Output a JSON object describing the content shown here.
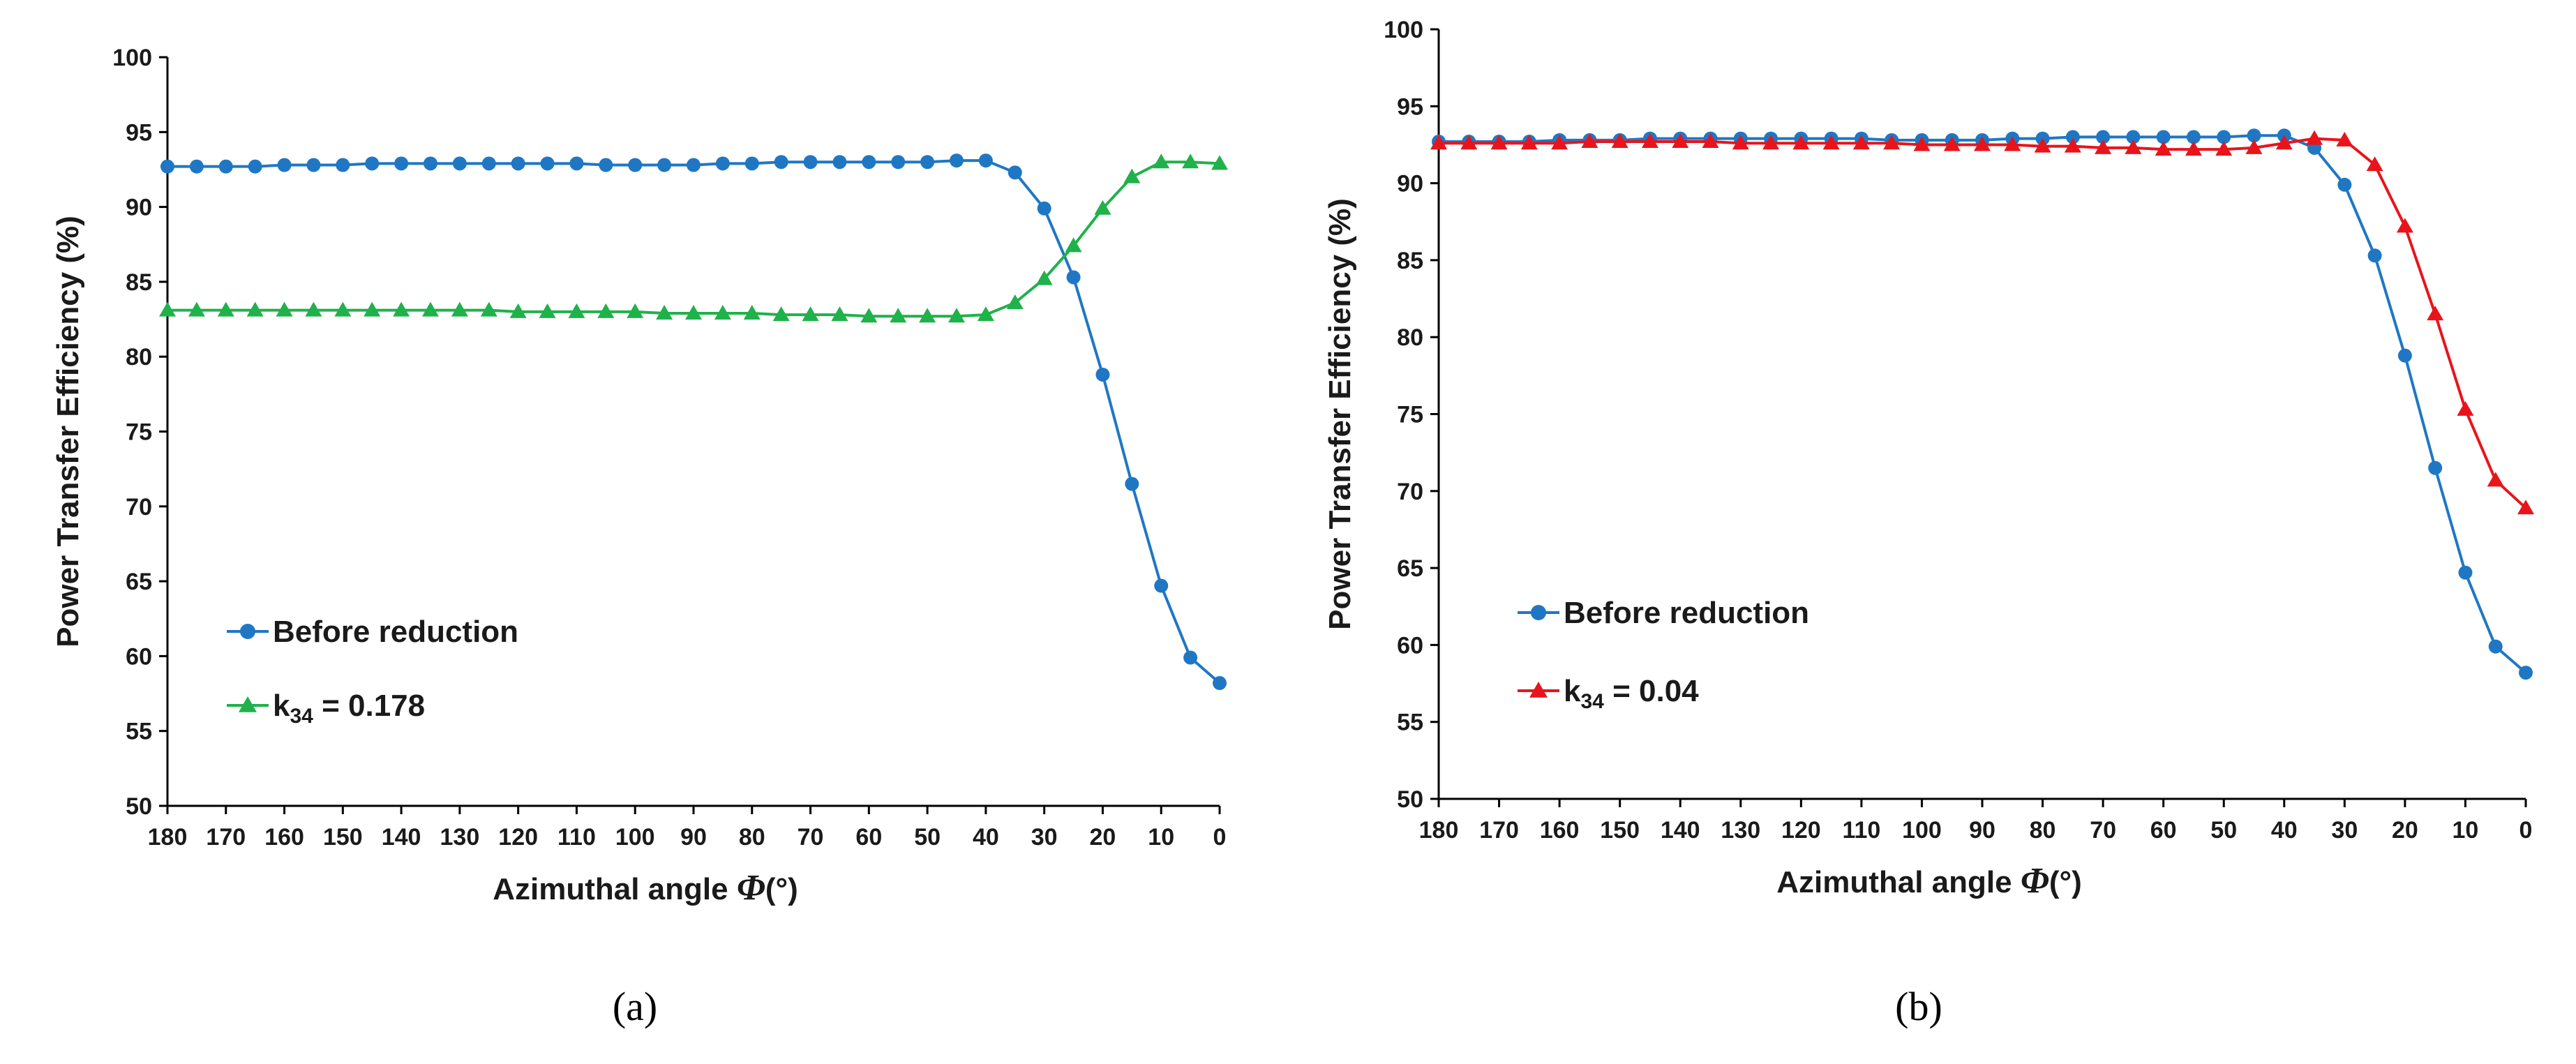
{
  "figure": {
    "caption_a": "(a)",
    "caption_b": "(b)"
  },
  "chart_data": [
    {
      "type": "line",
      "panel": "a",
      "title": "",
      "xlabel_prefix": "Azimuthal angle ",
      "xlabel_symbol": "Φ",
      "xlabel_suffix": "(°)",
      "ylabel": "Power Transfer Efficiency (%)",
      "xlim": [
        180,
        0
      ],
      "ylim": [
        50,
        100
      ],
      "yticks": [
        50,
        55,
        60,
        65,
        70,
        75,
        80,
        85,
        90,
        95,
        100
      ],
      "xticks": [
        180,
        170,
        160,
        150,
        140,
        130,
        120,
        110,
        100,
        90,
        80,
        70,
        60,
        50,
        40,
        30,
        20,
        10,
        0
      ],
      "grid": false,
      "legend_location": "lower-left",
      "x": [
        180,
        175,
        170,
        165,
        160,
        155,
        150,
        145,
        140,
        135,
        130,
        125,
        120,
        115,
        110,
        105,
        100,
        95,
        90,
        85,
        80,
        75,
        70,
        65,
        60,
        55,
        50,
        45,
        40,
        35,
        30,
        25,
        20,
        15,
        10,
        5,
        0
      ],
      "series": [
        {
          "name": "Before reduction",
          "legend_main": "Before reduction",
          "legend_sub": "",
          "legend_tail": "",
          "color": "#1f77c4",
          "marker": "circle",
          "values": [
            92.7,
            92.7,
            92.7,
            92.7,
            92.8,
            92.8,
            92.8,
            92.9,
            92.9,
            92.9,
            92.9,
            92.9,
            92.9,
            92.9,
            92.9,
            92.8,
            92.8,
            92.8,
            92.8,
            92.9,
            92.9,
            93.0,
            93.0,
            93.0,
            93.0,
            93.0,
            93.0,
            93.1,
            93.1,
            92.3,
            89.9,
            85.3,
            78.8,
            71.5,
            64.7,
            59.9,
            58.2
          ]
        },
        {
          "name": "k34 = 0.178",
          "legend_main": "k",
          "legend_sub": "34",
          "legend_tail": " = 0.178",
          "color": "#1fb24a",
          "marker": "triangle",
          "values": [
            83.1,
            83.1,
            83.1,
            83.1,
            83.1,
            83.1,
            83.1,
            83.1,
            83.1,
            83.1,
            83.1,
            83.1,
            83.0,
            83.0,
            83.0,
            83.0,
            83.0,
            82.9,
            82.9,
            82.9,
            82.9,
            82.8,
            82.8,
            82.8,
            82.7,
            82.7,
            82.7,
            82.7,
            82.8,
            83.6,
            85.2,
            87.4,
            89.9,
            92.0,
            93.0,
            93.0,
            92.9
          ]
        }
      ]
    },
    {
      "type": "line",
      "panel": "b",
      "title": "",
      "xlabel_prefix": "Azimuthal angle ",
      "xlabel_symbol": "Φ",
      "xlabel_suffix": "(°)",
      "ylabel": "Power Transfer Efficiency (%)",
      "xlim": [
        180,
        0
      ],
      "ylim": [
        50,
        100
      ],
      "yticks": [
        50,
        55,
        60,
        65,
        70,
        75,
        80,
        85,
        90,
        95,
        100
      ],
      "xticks": [
        180,
        170,
        160,
        150,
        140,
        130,
        120,
        110,
        100,
        90,
        80,
        70,
        60,
        50,
        40,
        30,
        20,
        10,
        0
      ],
      "grid": false,
      "legend_location": "lower-left",
      "x": [
        180,
        175,
        170,
        165,
        160,
        155,
        150,
        145,
        140,
        135,
        130,
        125,
        120,
        115,
        110,
        105,
        100,
        95,
        90,
        85,
        80,
        75,
        70,
        65,
        60,
        55,
        50,
        45,
        40,
        35,
        30,
        25,
        20,
        15,
        10,
        5,
        0
      ],
      "series": [
        {
          "name": "Before reduction",
          "legend_main": "Before reduction",
          "legend_sub": "",
          "legend_tail": "",
          "color": "#1f77c4",
          "marker": "circle",
          "values": [
            92.7,
            92.7,
            92.7,
            92.7,
            92.8,
            92.8,
            92.8,
            92.9,
            92.9,
            92.9,
            92.9,
            92.9,
            92.9,
            92.9,
            92.9,
            92.8,
            92.8,
            92.8,
            92.8,
            92.9,
            92.9,
            93.0,
            93.0,
            93.0,
            93.0,
            93.0,
            93.0,
            93.1,
            93.1,
            92.3,
            89.9,
            85.3,
            78.8,
            71.5,
            64.7,
            59.9,
            58.2
          ]
        },
        {
          "name": "k34 = 0.04",
          "legend_main": "k",
          "legend_sub": "34",
          "legend_tail": " = 0.04",
          "color": "#e8141c",
          "marker": "triangle",
          "values": [
            92.6,
            92.6,
            92.6,
            92.6,
            92.6,
            92.7,
            92.7,
            92.7,
            92.7,
            92.7,
            92.6,
            92.6,
            92.6,
            92.6,
            92.6,
            92.6,
            92.5,
            92.5,
            92.5,
            92.5,
            92.4,
            92.4,
            92.3,
            92.3,
            92.2,
            92.2,
            92.2,
            92.3,
            92.6,
            92.9,
            92.8,
            91.2,
            87.2,
            81.5,
            75.3,
            70.7,
            68.9
          ]
        }
      ]
    }
  ]
}
